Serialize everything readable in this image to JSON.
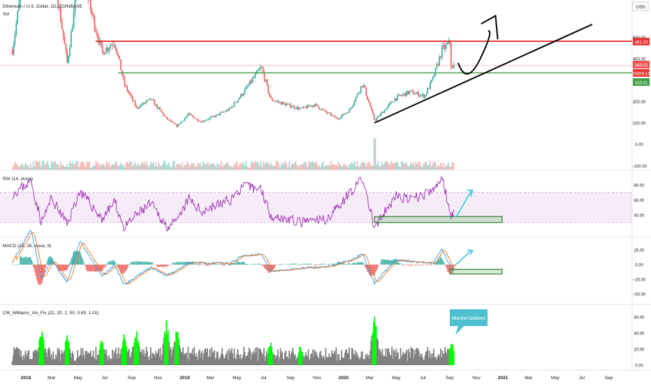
{
  "chart_data": {
    "type": "candlestick",
    "main": {
      "title": "Ethereum / U.S. Dollar, 1D, COINBASE",
      "volume_label": "Vol",
      "currency": "USD",
      "y_ticks": [
        {
          "label": "500.00",
          "v": 500
        },
        {
          "label": "400.00",
          "v": 400
        },
        {
          "label": "300.00",
          "v": 300
        },
        {
          "label": "200.00",
          "v": 200
        },
        {
          "label": "100.00",
          "v": 100
        },
        {
          "label": "0.00",
          "v": 0
        },
        {
          "label": "−100.00",
          "v": -100
        }
      ],
      "price_tags": [
        {
          "label": "481.23",
          "v": 481.23,
          "color": "#e53935"
        },
        {
          "label": "368.02",
          "v": 368.02,
          "color": "#ef5350"
        },
        {
          "label": "10d05:14",
          "v": 345,
          "color": "#e53935"
        },
        {
          "label": "333.41",
          "v": 333.41,
          "color": "#43a047"
        }
      ],
      "resistance": 481.23,
      "support": 333.41,
      "series": [
        {
          "d": "2017-12-01",
          "v": 440
        },
        {
          "d": "2017-12-20",
          "v": 700
        },
        {
          "d": "2018-01-13",
          "v": 1300
        },
        {
          "d": "2018-02-06",
          "v": 700
        },
        {
          "d": "2018-03-01",
          "v": 870
        },
        {
          "d": "2018-04-06",
          "v": 380
        },
        {
          "d": "2018-05-05",
          "v": 820
        },
        {
          "d": "2018-06-25",
          "v": 430
        },
        {
          "d": "2018-07-24",
          "v": 480
        },
        {
          "d": "2018-08-15",
          "v": 280
        },
        {
          "d": "2018-09-12",
          "v": 170
        },
        {
          "d": "2018-10-15",
          "v": 210
        },
        {
          "d": "2018-11-20",
          "v": 120
        },
        {
          "d": "2018-12-14",
          "v": 85
        },
        {
          "d": "2019-01-10",
          "v": 140
        },
        {
          "d": "2019-02-07",
          "v": 105
        },
        {
          "d": "2019-03-15",
          "v": 135
        },
        {
          "d": "2019-04-15",
          "v": 165
        },
        {
          "d": "2019-05-15",
          "v": 240
        },
        {
          "d": "2019-06-26",
          "v": 360
        },
        {
          "d": "2019-07-17",
          "v": 210
        },
        {
          "d": "2019-08-15",
          "v": 190
        },
        {
          "d": "2019-09-24",
          "v": 165
        },
        {
          "d": "2019-10-26",
          "v": 185
        },
        {
          "d": "2019-11-25",
          "v": 145
        },
        {
          "d": "2019-12-18",
          "v": 120
        },
        {
          "d": "2020-01-15",
          "v": 160
        },
        {
          "d": "2020-02-14",
          "v": 285
        },
        {
          "d": "2020-03-12",
          "v": 110
        },
        {
          "d": "2020-04-29",
          "v": 215
        },
        {
          "d": "2020-06-01",
          "v": 245
        },
        {
          "d": "2020-07-05",
          "v": 225
        },
        {
          "d": "2020-07-25",
          "v": 310
        },
        {
          "d": "2020-08-14",
          "v": 440
        },
        {
          "d": "2020-09-01",
          "v": 475
        },
        {
          "d": "2020-09-05",
          "v": 335
        },
        {
          "d": "2020-09-10",
          "v": 368
        }
      ],
      "trendline": [
        {
          "d": "2020-03-12",
          "v": 100
        },
        {
          "d": "2021-07-25",
          "v": 560
        }
      ],
      "arrow_path": [
        {
          "d": "2020-09-20",
          "v": 380
        },
        {
          "d": "2020-10-10",
          "v": 350
        },
        {
          "d": "2020-11-10",
          "v": 400
        },
        {
          "d": "2020-11-28",
          "v": 530
        },
        {
          "d": "2020-12-15",
          "v": 600
        },
        {
          "d": "2020-12-20",
          "v": 490
        }
      ]
    },
    "rsi": {
      "title": "RSI (14, close)",
      "y_ticks": [
        {
          "label": "80.00",
          "v": 80
        },
        {
          "label": "60.00",
          "v": 60
        },
        {
          "label": "40.00",
          "v": 40
        }
      ],
      "band_upper": 70,
      "band_lower": 30,
      "series": [
        {
          "d": "2017-12-01",
          "v": 68
        },
        {
          "d": "2018-01-13",
          "v": 85
        },
        {
          "d": "2018-02-06",
          "v": 30
        },
        {
          "d": "2018-03-01",
          "v": 62
        },
        {
          "d": "2018-04-06",
          "v": 28
        },
        {
          "d": "2018-05-05",
          "v": 72
        },
        {
          "d": "2018-06-25",
          "v": 35
        },
        {
          "d": "2018-07-24",
          "v": 58
        },
        {
          "d": "2018-08-15",
          "v": 22
        },
        {
          "d": "2018-09-12",
          "v": 40
        },
        {
          "d": "2018-10-15",
          "v": 55
        },
        {
          "d": "2018-11-20",
          "v": 25
        },
        {
          "d": "2018-12-14",
          "v": 30
        },
        {
          "d": "2019-01-10",
          "v": 62
        },
        {
          "d": "2019-02-07",
          "v": 45
        },
        {
          "d": "2019-04-15",
          "v": 60
        },
        {
          "d": "2019-05-15",
          "v": 78
        },
        {
          "d": "2019-06-26",
          "v": 75
        },
        {
          "d": "2019-07-17",
          "v": 40
        },
        {
          "d": "2019-09-24",
          "v": 30
        },
        {
          "d": "2019-11-25",
          "v": 35
        },
        {
          "d": "2020-01-15",
          "v": 70
        },
        {
          "d": "2020-02-14",
          "v": 88
        },
        {
          "d": "2020-03-12",
          "v": 22
        },
        {
          "d": "2020-04-29",
          "v": 65
        },
        {
          "d": "2020-06-01",
          "v": 60
        },
        {
          "d": "2020-07-25",
          "v": 72
        },
        {
          "d": "2020-08-14",
          "v": 90
        },
        {
          "d": "2020-09-05",
          "v": 38
        },
        {
          "d": "2020-09-10",
          "v": 45
        }
      ],
      "box": {
        "d1": "2020-03-12",
        "d2": "2020-12-30",
        "v1": 30,
        "v2": 38
      }
    },
    "macd": {
      "title": "MACD (12, 26, close, 9)",
      "y_ticks": [
        {
          "label": "25.00",
          "v": 25
        },
        {
          "label": "0.00",
          "v": 0
        },
        {
          "label": "−25.00",
          "v": -25
        },
        {
          "label": "−50.00",
          "v": -50
        }
      ],
      "series": [
        {
          "d": "2017-12-01",
          "v": 5
        },
        {
          "d": "2018-01-13",
          "v": 60
        },
        {
          "d": "2018-02-06",
          "v": -25
        },
        {
          "d": "2018-03-01",
          "v": 8
        },
        {
          "d": "2018-04-06",
          "v": -30
        },
        {
          "d": "2018-05-05",
          "v": 40
        },
        {
          "d": "2018-06-25",
          "v": -20
        },
        {
          "d": "2018-07-24",
          "v": 0
        },
        {
          "d": "2018-08-15",
          "v": -35
        },
        {
          "d": "2018-09-12",
          "v": -20
        },
        {
          "d": "2018-10-15",
          "v": -5
        },
        {
          "d": "2018-11-20",
          "v": -18
        },
        {
          "d": "2018-12-14",
          "v": -10
        },
        {
          "d": "2019-01-10",
          "v": 3
        },
        {
          "d": "2019-04-15",
          "v": 2
        },
        {
          "d": "2019-05-15",
          "v": 15
        },
        {
          "d": "2019-06-26",
          "v": 18
        },
        {
          "d": "2019-07-17",
          "v": -12
        },
        {
          "d": "2019-09-24",
          "v": -6
        },
        {
          "d": "2019-11-25",
          "v": -4
        },
        {
          "d": "2020-01-15",
          "v": 8
        },
        {
          "d": "2020-02-14",
          "v": 18
        },
        {
          "d": "2020-03-12",
          "v": -32
        },
        {
          "d": "2020-04-29",
          "v": 8
        },
        {
          "d": "2020-07-25",
          "v": 2
        },
        {
          "d": "2020-08-14",
          "v": 28
        },
        {
          "d": "2020-09-05",
          "v": -8
        },
        {
          "d": "2020-09-10",
          "v": -10
        }
      ],
      "box": {
        "d1": "2020-09-01",
        "d2": "2020-12-30",
        "v1": -8,
        "v2": -16
      }
    },
    "vix": {
      "title": "CM_Williams_Vix_Fix (22, 20, 2, 50, 0.85, 1.01)",
      "y_ticks": [
        {
          "label": "60.00",
          "v": 60
        },
        {
          "label": "40.00",
          "v": 40
        },
        {
          "label": "20.00",
          "v": 20
        },
        {
          "label": "0.00",
          "v": 0
        }
      ],
      "callout": "Market bottom",
      "spikes": [
        {
          "d": "2018-02-06",
          "v": 48
        },
        {
          "d": "2018-04-06",
          "v": 40
        },
        {
          "d": "2018-06-25",
          "v": 35
        },
        {
          "d": "2018-08-15",
          "v": 40
        },
        {
          "d": "2018-09-12",
          "v": 45
        },
        {
          "d": "2018-11-20",
          "v": 58
        },
        {
          "d": "2018-12-14",
          "v": 52
        },
        {
          "d": "2019-07-17",
          "v": 30
        },
        {
          "d": "2019-09-24",
          "v": 22
        },
        {
          "d": "2020-03-12",
          "v": 70
        },
        {
          "d": "2020-09-05",
          "v": 32
        }
      ]
    },
    "x_ticks": [
      {
        "label": "2018",
        "d": "2018-01-01"
      },
      {
        "label": "Mar",
        "d": "2018-03-01"
      },
      {
        "label": "May",
        "d": "2018-05-01"
      },
      {
        "label": "Jul",
        "d": "2018-07-01"
      },
      {
        "label": "Sep",
        "d": "2018-09-01"
      },
      {
        "label": "Nov",
        "d": "2018-11-01"
      },
      {
        "label": "2019",
        "d": "2019-01-01"
      },
      {
        "label": "Mar",
        "d": "2019-03-01"
      },
      {
        "label": "May",
        "d": "2019-05-01"
      },
      {
        "label": "Jul",
        "d": "2019-07-01"
      },
      {
        "label": "Sep",
        "d": "2019-09-01"
      },
      {
        "label": "Nov",
        "d": "2019-11-01"
      },
      {
        "label": "2020",
        "d": "2020-01-01"
      },
      {
        "label": "Mar",
        "d": "2020-03-01"
      },
      {
        "label": "May",
        "d": "2020-05-01"
      },
      {
        "label": "Jul",
        "d": "2020-07-01"
      },
      {
        "label": "Sep",
        "d": "2020-09-01"
      },
      {
        "label": "Nov",
        "d": "2020-11-01"
      },
      {
        "label": "2021",
        "d": "2021-01-01"
      },
      {
        "label": "Mar",
        "d": "2021-03-01"
      },
      {
        "label": "May",
        "d": "2021-05-01"
      },
      {
        "label": "Jul",
        "d": "2021-07-01"
      },
      {
        "label": "Sep",
        "d": "2021-09-01"
      }
    ],
    "colors": {
      "up": "#26a69a",
      "down": "#ef5350",
      "rsi": "#9c27b0",
      "macd": "#2196f3",
      "signal": "#ff6d00",
      "vix_gray": "#808080",
      "vix_green": "#00ff00",
      "trend": "#000000",
      "annot": "#26c6da"
    }
  }
}
